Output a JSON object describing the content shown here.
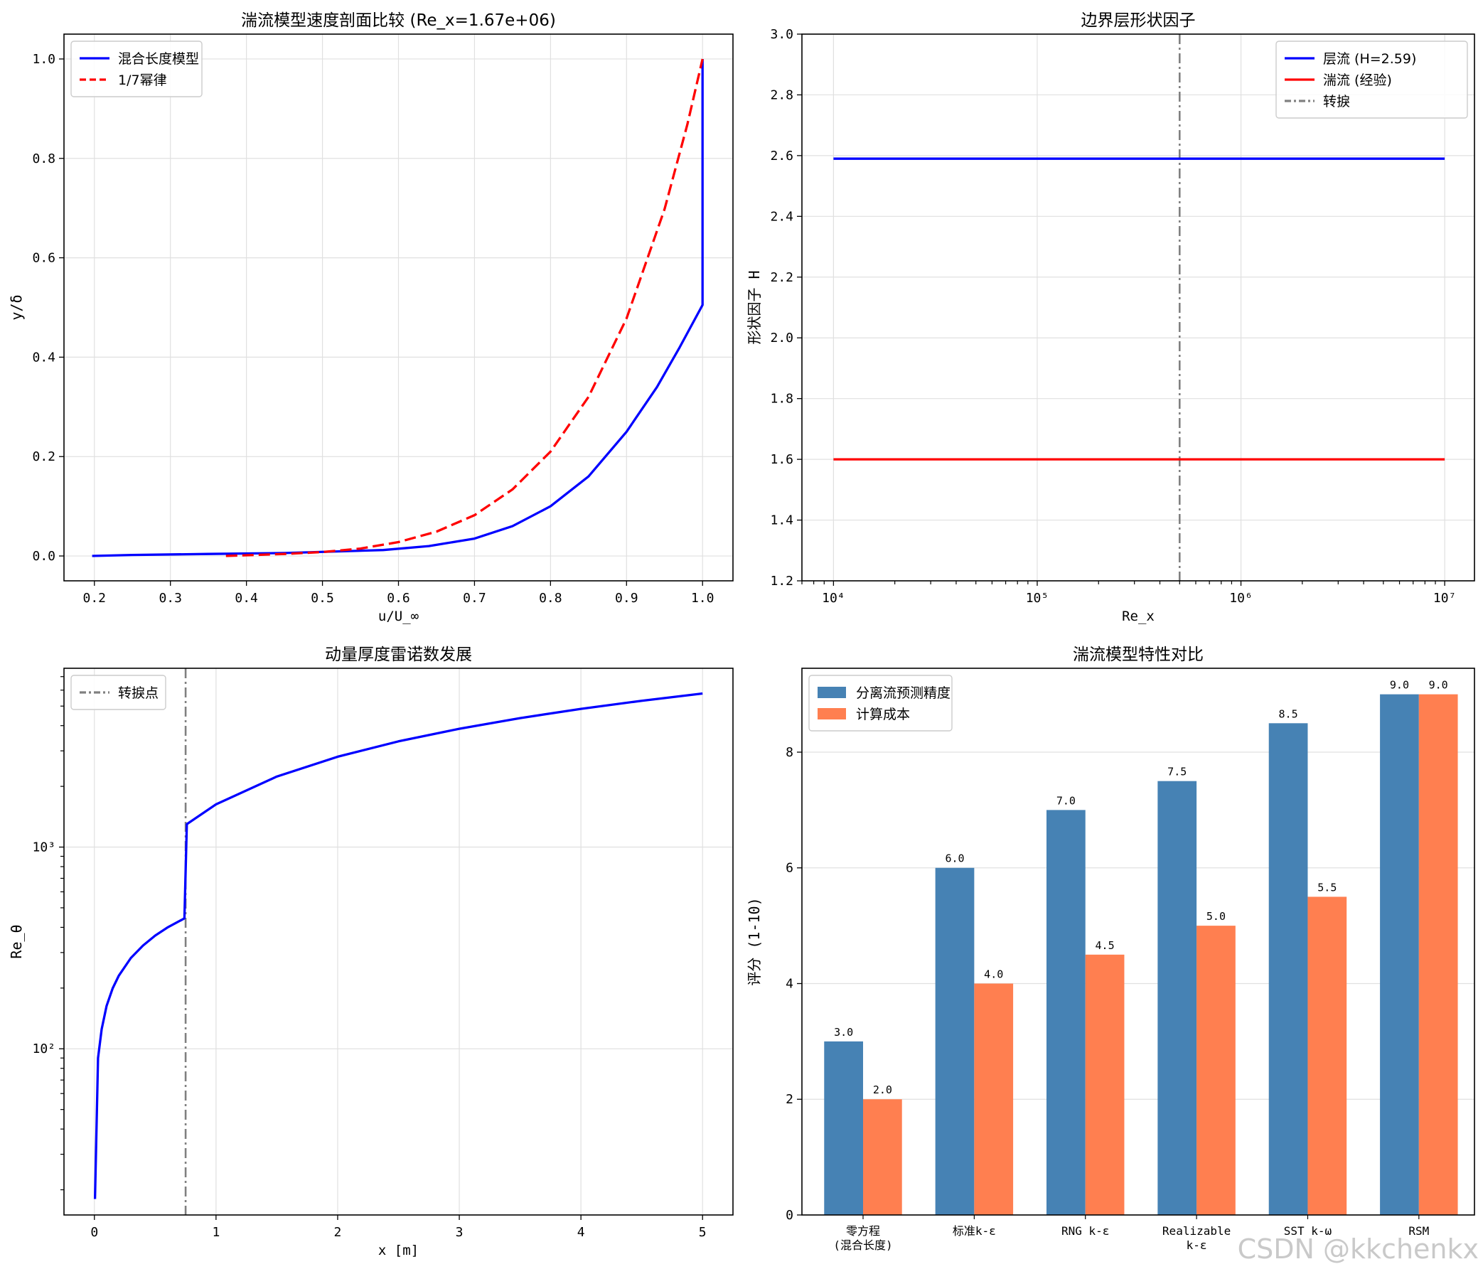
{
  "watermark": "CSDN @kkchenkx",
  "chart_data": [
    {
      "type": "line",
      "title": "湍流模型速度剖面比较 (Re_x=1.67e+06)",
      "xlabel": "u/U_∞",
      "ylabel": "y/δ",
      "xlim": [
        0.16,
        1.04
      ],
      "ylim": [
        -0.05,
        1.05
      ],
      "xticks": [
        0.2,
        0.3,
        0.4,
        0.5,
        0.6,
        0.7,
        0.8,
        0.9,
        1.0
      ],
      "xtick_labels": [
        "0.2",
        "0.3",
        "0.4",
        "0.5",
        "0.6",
        "0.7",
        "0.8",
        "0.9",
        "1.0"
      ],
      "yticks": [
        0.0,
        0.2,
        0.4,
        0.6,
        0.8,
        1.0
      ],
      "ytick_labels": [
        "0.0",
        "0.2",
        "0.4",
        "0.6",
        "0.8",
        "1.0"
      ],
      "grid": true,
      "legend": "top-left",
      "series": [
        {
          "name": "混合长度模型",
          "color": "#0000ff",
          "dash": "solid",
          "points": [
            [
              0.197,
              0.0
            ],
            [
              0.25,
              0.002
            ],
            [
              0.35,
              0.004
            ],
            [
              0.45,
              0.006
            ],
            [
              0.58,
              0.012
            ],
            [
              0.64,
              0.02
            ],
            [
              0.7,
              0.035
            ],
            [
              0.75,
              0.06
            ],
            [
              0.8,
              0.1
            ],
            [
              0.85,
              0.16
            ],
            [
              0.9,
              0.25
            ],
            [
              0.94,
              0.34
            ],
            [
              0.97,
              0.42
            ],
            [
              1.0,
              0.505
            ],
            [
              1.0,
              1.0
            ]
          ]
        },
        {
          "name": "1/7幂律",
          "color": "#ff0000",
          "dash": "dashed",
          "points": [
            [
              0.373,
              0.0
            ],
            [
              0.45,
              0.004
            ],
            [
              0.5,
              0.008
            ],
            [
              0.55,
              0.015
            ],
            [
              0.6,
              0.028
            ],
            [
              0.65,
              0.049
            ],
            [
              0.7,
              0.082
            ],
            [
              0.75,
              0.134
            ],
            [
              0.8,
              0.21
            ],
            [
              0.85,
              0.32
            ],
            [
              0.9,
              0.478
            ],
            [
              0.95,
              0.698
            ],
            [
              0.98,
              0.868
            ],
            [
              1.0,
              1.0
            ]
          ]
        }
      ]
    },
    {
      "type": "line",
      "title": "边界层形状因子",
      "xlabel": "Re_x",
      "ylabel": "形状因子 H",
      "xscale": "log",
      "xlim": [
        7000,
        14000000
      ],
      "ylim": [
        1.2,
        3.0
      ],
      "xticks": [
        10000,
        100000,
        1000000,
        10000000
      ],
      "xtick_labels": [
        "10⁴",
        "10⁵",
        "10⁶",
        "10⁷"
      ],
      "yticks": [
        1.2,
        1.4,
        1.6,
        1.8,
        2.0,
        2.2,
        2.4,
        2.6,
        2.8,
        3.0
      ],
      "ytick_labels": [
        "1.2",
        "1.4",
        "1.6",
        "1.8",
        "2.0",
        "2.2",
        "2.4",
        "2.6",
        "2.8",
        "3.0"
      ],
      "grid": true,
      "legend": "top-right",
      "series": [
        {
          "name": "层流 (H=2.59)",
          "color": "#0000ff",
          "dash": "solid",
          "points": [
            [
              10000,
              2.59
            ],
            [
              10000000,
              2.59
            ]
          ]
        },
        {
          "name": "湍流 (经验)",
          "color": "#ff0000",
          "dash": "solid",
          "points": [
            [
              10000,
              1.6
            ],
            [
              10000000,
              1.6
            ]
          ]
        }
      ],
      "vlines": [
        {
          "name": "转捩",
          "x": 500000,
          "color": "#808080",
          "dash": "dashdot"
        }
      ]
    },
    {
      "type": "line",
      "title": "动量厚度雷诺数发展",
      "xlabel": "x [m]",
      "ylabel": "Re_θ",
      "yscale": "log",
      "xlim": [
        -0.25,
        5.25
      ],
      "ylim": [
        15,
        7700
      ],
      "xticks": [
        0,
        1,
        2,
        3,
        4,
        5
      ],
      "xtick_labels": [
        "0",
        "1",
        "2",
        "3",
        "4",
        "5"
      ],
      "yticks": [
        100,
        1000
      ],
      "ytick_labels": [
        "10²",
        "10³"
      ],
      "grid": true,
      "legend": "top-left",
      "series": [
        {
          "name": "Re_θ",
          "color": "#0000ff",
          "dash": "solid",
          "points": [
            [
              0.005,
              18
            ],
            [
              0.03,
              90
            ],
            [
              0.06,
              125
            ],
            [
              0.1,
              163
            ],
            [
              0.15,
              199
            ],
            [
              0.2,
              230
            ],
            [
              0.3,
              282
            ],
            [
              0.4,
              325
            ],
            [
              0.5,
              364
            ],
            [
              0.6,
              399
            ],
            [
              0.74,
              443
            ],
            [
              0.76,
              1300
            ],
            [
              1.0,
              1629
            ],
            [
              1.5,
              2238
            ],
            [
              2.0,
              2805
            ],
            [
              2.5,
              3344
            ],
            [
              3.0,
              3861
            ],
            [
              3.5,
              4359
            ],
            [
              4.0,
              4843
            ],
            [
              4.5,
              5313
            ],
            [
              5.0,
              5771
            ]
          ]
        }
      ],
      "vlines": [
        {
          "name": "转捩点",
          "x": 0.75,
          "color": "#808080",
          "dash": "dashdot"
        }
      ]
    },
    {
      "type": "bar",
      "title": "湍流模型特性对比",
      "xlabel": "",
      "ylabel": "评分 (1-10)",
      "ylim": [
        0,
        9.45
      ],
      "yticks": [
        0,
        2,
        4,
        6,
        8
      ],
      "ytick_labels": [
        "0",
        "2",
        "4",
        "6",
        "8"
      ],
      "grid": true,
      "legend": "top-left",
      "categories": [
        [
          "零方程",
          "(混合长度)"
        ],
        [
          "标准k-ε"
        ],
        [
          "RNG k-ε"
        ],
        [
          "Realizable",
          "k-ε"
        ],
        [
          "SST k-ω"
        ],
        [
          "RSM"
        ]
      ],
      "series": [
        {
          "name": "分离流预测精度",
          "color": "#4682b4",
          "values": [
            3.0,
            6.0,
            7.0,
            7.5,
            8.5,
            9.0
          ],
          "labels": [
            "3.0",
            "6.0",
            "7.0",
            "7.5",
            "8.5",
            "9.0"
          ]
        },
        {
          "name": "计算成本",
          "color": "#ff7f50",
          "values": [
            2.0,
            4.0,
            4.5,
            5.0,
            5.5,
            9.0
          ],
          "labels": [
            "2.0",
            "4.0",
            "4.5",
            "5.0",
            "5.5",
            "9.0"
          ]
        }
      ]
    }
  ]
}
